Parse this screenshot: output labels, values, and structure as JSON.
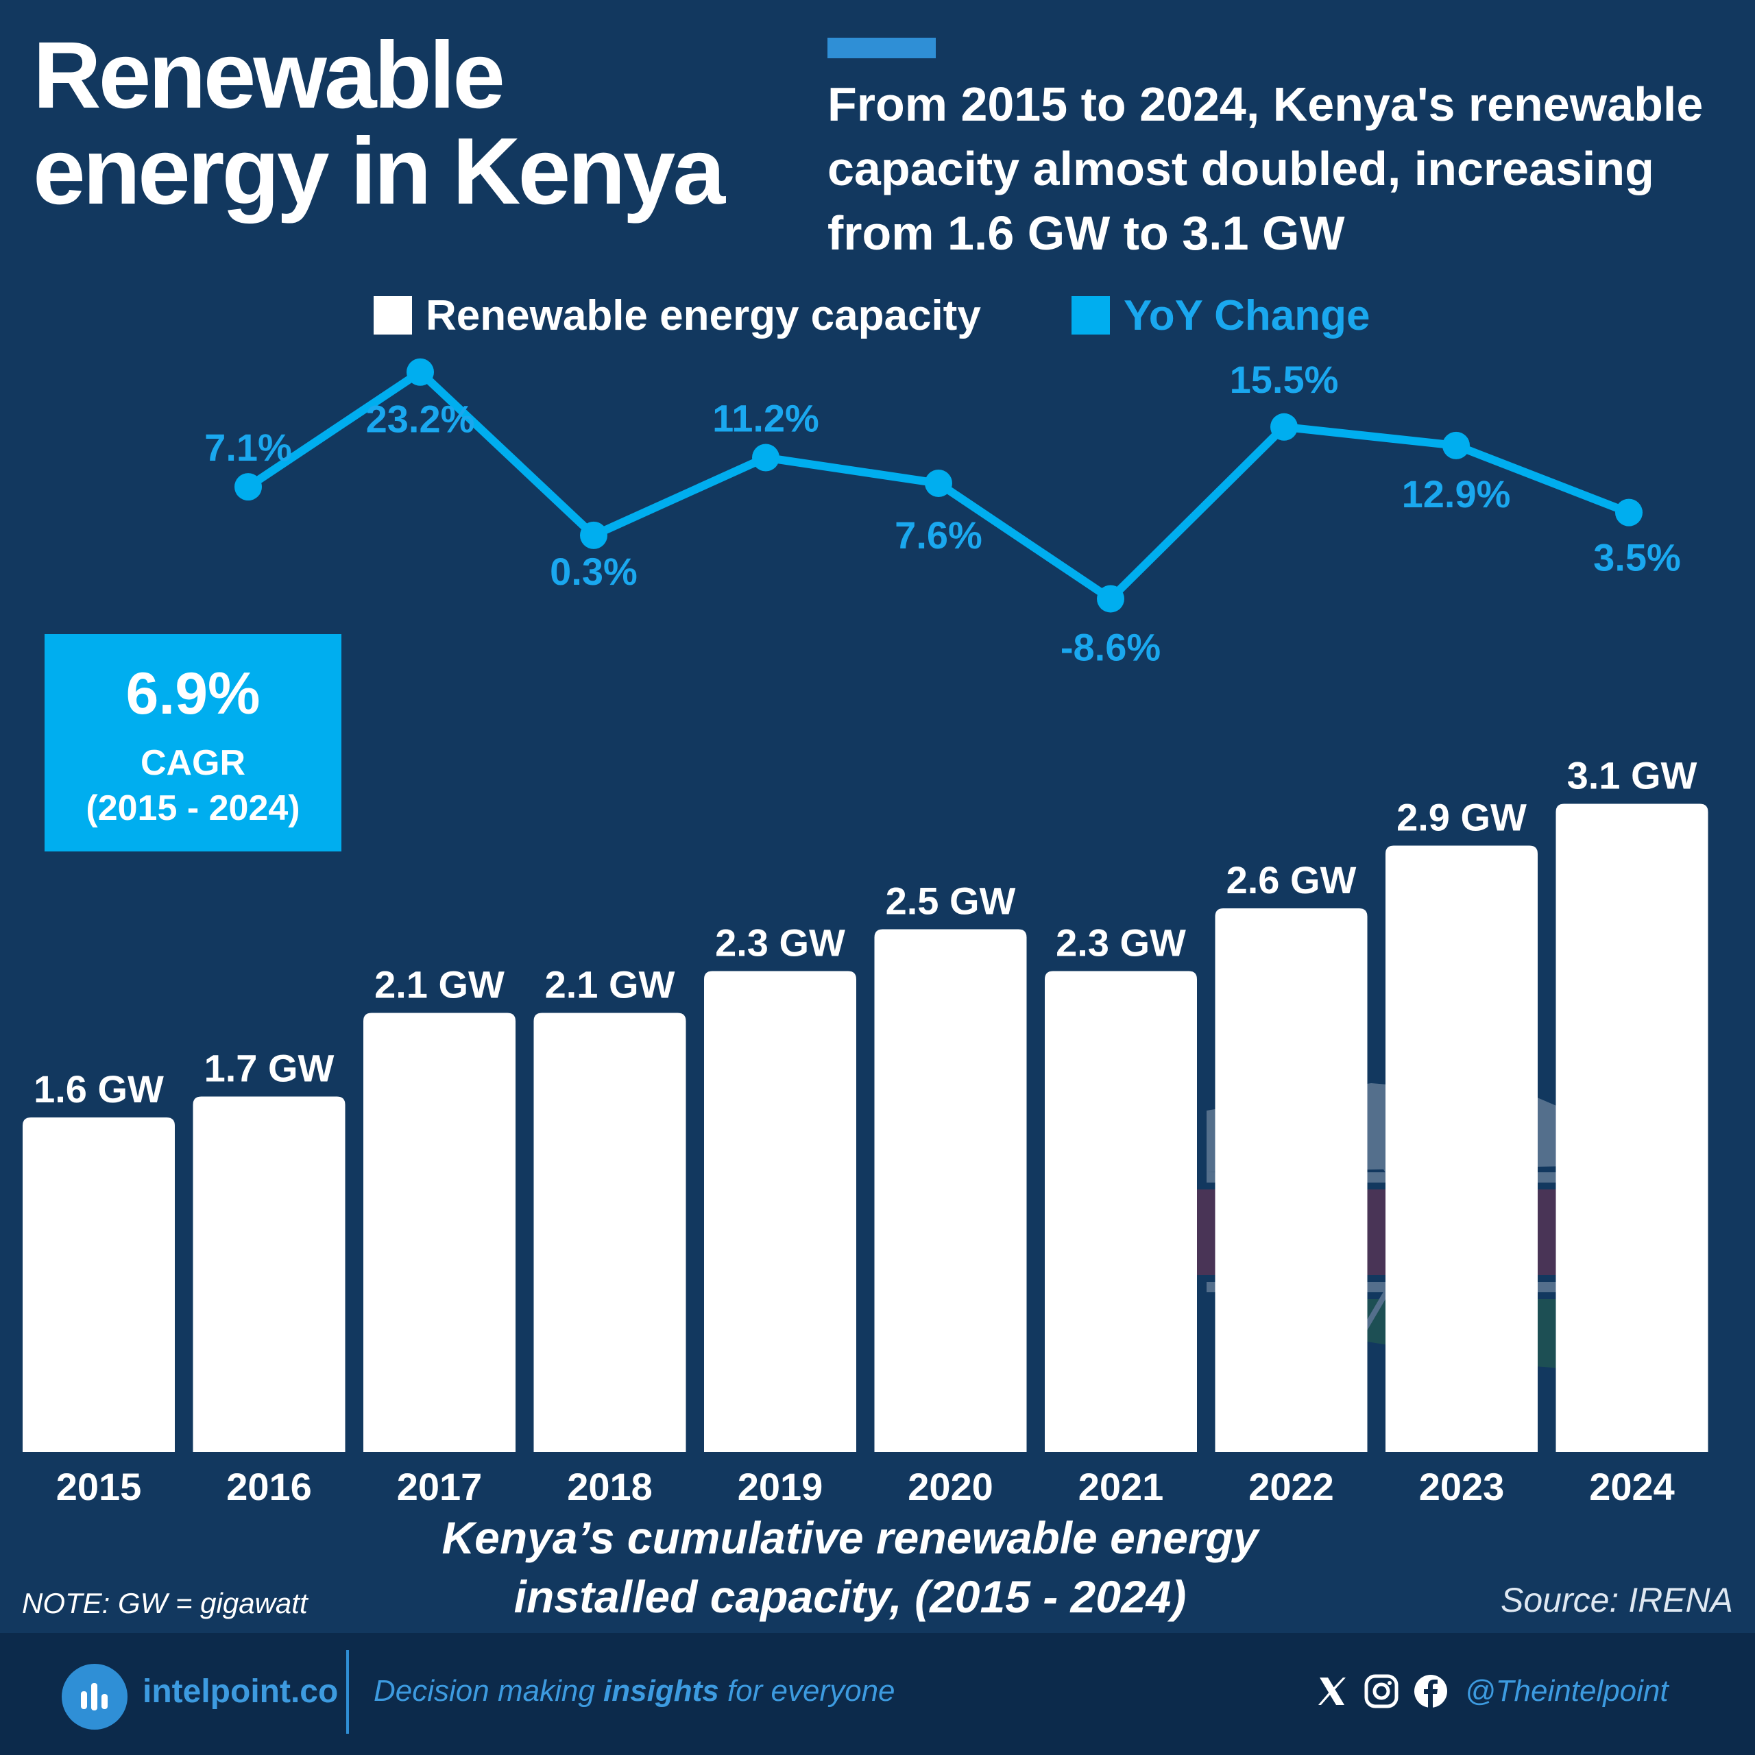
{
  "title": "Renewable energy in Kenya",
  "subtitle": "From 2015 to 2024, Kenya's renewable capacity almost doubled, increasing from 1.6 GW to 3.1 GW",
  "legend": {
    "capacity": "Renewable energy capacity",
    "yoy": "YoY Change"
  },
  "cagr": {
    "value": "6.9%",
    "label": "CAGR",
    "period": "(2015 - 2024)"
  },
  "caption": "Kenya’s cumulative renewable energy installed capacity, (2015 - 2024)",
  "note": "NOTE: GW = gigawatt",
  "source": "Source: IRENA",
  "footer": {
    "brand": "intelpoint.co",
    "tagline_pre": "Decision making ",
    "tagline_bold": "insights",
    "tagline_post": " for everyone",
    "handle": "@Theintelpoint",
    "icons": [
      "logo-bars-icon",
      "x-icon",
      "instagram-icon",
      "facebook-icon"
    ]
  },
  "colors": {
    "background": "#12385f",
    "bar": "#ffffff",
    "line": "#00aeef",
    "accent": "#2f8fd6",
    "footer": "#0c2a4b"
  },
  "chart_data": [
    {
      "type": "bar",
      "categories": [
        "2015",
        "2016",
        "2017",
        "2018",
        "2019",
        "2020",
        "2021",
        "2022",
        "2023",
        "2024"
      ],
      "values": [
        1.6,
        1.7,
        2.1,
        2.1,
        2.3,
        2.5,
        2.3,
        2.6,
        2.9,
        3.1
      ],
      "data_labels": [
        "1.6 GW",
        "1.7 GW",
        "2.1 GW",
        "2.1 GW",
        "2.3 GW",
        "2.5 GW",
        "2.3 GW",
        "2.6 GW",
        "2.9 GW",
        "3.1 GW"
      ],
      "unit": "GW",
      "series_name": "Renewable energy capacity",
      "ylim": [
        0,
        3.1
      ],
      "grid": false
    },
    {
      "type": "line",
      "categories": [
        "2015",
        "2016",
        "2017",
        "2018",
        "2019",
        "2020",
        "2021",
        "2022",
        "2023",
        "2024"
      ],
      "values": [
        7.1,
        23.2,
        0.3,
        11.2,
        7.6,
        -8.6,
        15.5,
        12.9,
        3.5
      ],
      "x": [
        "2016",
        "2017",
        "2018",
        "2019",
        "2020",
        "2021",
        "2022",
        "2023",
        "2024"
      ],
      "data_labels": [
        "7.1%",
        "23.2%",
        "0.3%",
        "11.2%",
        "7.6%",
        "-8.6%",
        "15.5%",
        "12.9%",
        "3.5%"
      ],
      "unit": "%",
      "series_name": "YoY Change",
      "grid": false
    }
  ]
}
